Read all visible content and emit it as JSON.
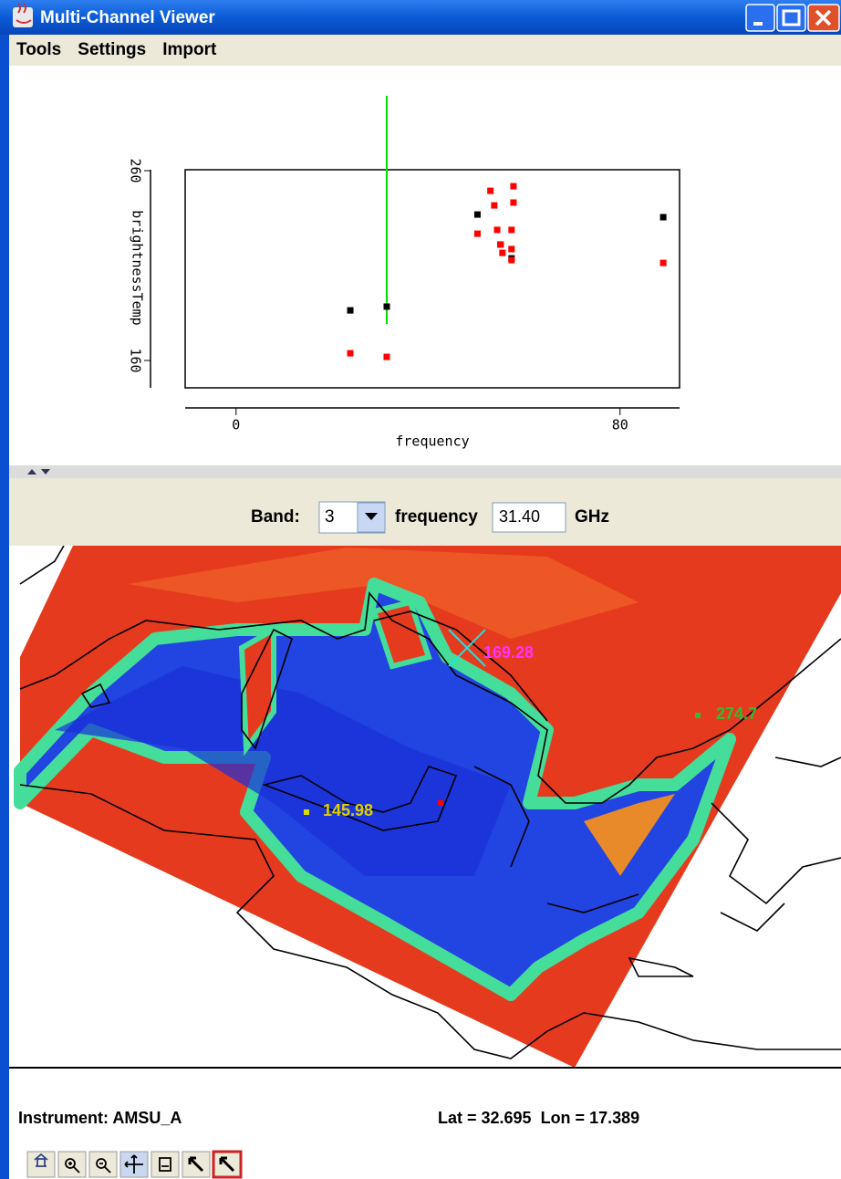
{
  "window": {
    "title": "Multi-Channel Viewer",
    "menu": [
      "Tools",
      "Settings",
      "Import"
    ]
  },
  "chart_data": {
    "type": "scatter",
    "xlabel": "frequency",
    "ylabel": "brightnessTemp",
    "xlim": [
      -10.6,
      92.4
    ],
    "ylim": [
      145.6,
      260.5
    ],
    "xticks": [
      0,
      80
    ],
    "yticks": [
      160,
      260
    ],
    "series": [
      {
        "color": "#000000",
        "x": [
          23.8,
          31.4,
          50.3,
          55.1,
          57.4,
          89.0
        ],
        "values": [
          186.4,
          188.4,
          236.9,
          221.1,
          213.8,
          235.5
        ]
      },
      {
        "color": "#ff0000",
        "x": [
          23.8,
          31.4,
          50.3,
          53.0,
          53.8,
          54.4,
          55.1,
          55.5,
          57.8,
          57.8,
          57.4,
          57.4,
          57.4,
          89.0
        ],
        "values": [
          163.8,
          161.9,
          226.8,
          249.4,
          241.7,
          228.8,
          221.1,
          216.7,
          251.8,
          243.2,
          228.8,
          218.7,
          212.9,
          211.4
        ]
      }
    ]
  },
  "band_bar": {
    "band_label": "Band:",
    "band": "3",
    "frequency_label": "frequency",
    "frequency": "31.40",
    "unit": "GHz"
  },
  "map": {
    "labels": [
      "274.7",
      "145.98",
      "169.28"
    ]
  },
  "status": {
    "instrument": "Instrument: AMSU_A",
    "position": "Lat = 32.695  Lon = 17.389"
  }
}
